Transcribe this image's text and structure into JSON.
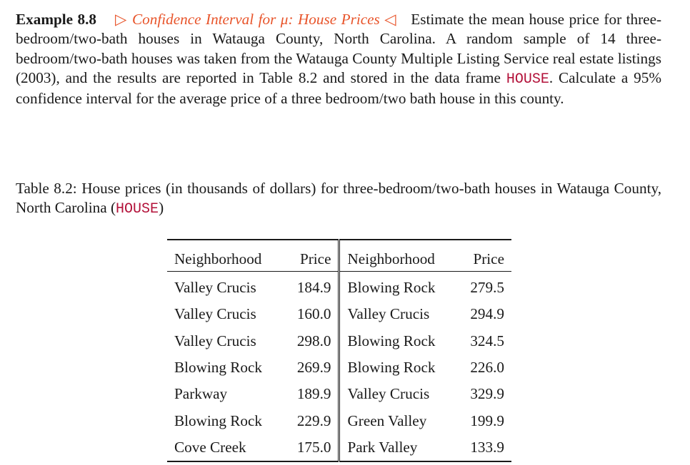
{
  "example": {
    "label": "Example 8.8",
    "open_marker": "▷",
    "title": "Confidence Interval for μ: House Prices",
    "close_marker": "◁",
    "text_part1": "Estimate the mean house price for three-bedroom/two-bath houses in Watauga County, North Carolina. A random sample of 14 three-bedroom/two-bath houses was taken from the Watauga County Multiple Listing Service real estate listings (2003), and the results are reported in Table 8.2 and stored in the data frame",
    "data_frame": "HOUSE",
    "text_part2": ". Calculate a 95% confidence interval for the average price of a three bedroom/two bath house in this county."
  },
  "caption": {
    "text": "Table 8.2: House prices (in thousands of dollars) for three-bedroom/two-bath houses in Watauga County, North Carolina (",
    "data_frame": "HOUSE",
    "close": ")"
  },
  "table": {
    "headers": [
      "Neighborhood",
      "Price",
      "Neighborhood",
      "Price"
    ],
    "rows": [
      [
        "Valley Crucis",
        "184.9",
        "Blowing Rock",
        "279.5"
      ],
      [
        "Valley Crucis",
        "160.0",
        "Valley Crucis",
        "294.9"
      ],
      [
        "Valley Crucis",
        "298.0",
        "Blowing Rock",
        "324.5"
      ],
      [
        "Blowing Rock",
        "269.9",
        "Blowing Rock",
        "226.0"
      ],
      [
        "Parkway",
        "189.9",
        "Valley Crucis",
        "329.9"
      ],
      [
        "Blowing Rock",
        "229.9",
        "Green Valley",
        "199.9"
      ],
      [
        "Cove Creek",
        "175.0",
        "Park Valley",
        "133.9"
      ]
    ]
  },
  "colors": {
    "accent": "#e8542a",
    "code": "#b3123a",
    "text": "#1a1a1a"
  }
}
